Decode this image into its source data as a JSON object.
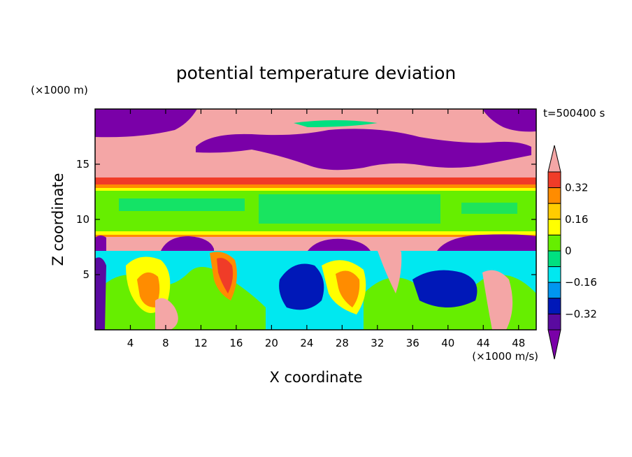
{
  "chart_data": {
    "type": "heatmap",
    "title": "potential temperature deviation",
    "xlabel": "X coordinate",
    "ylabel": "Z coordinate",
    "x_unit_label": "(×1000 m/s)",
    "y_unit_label": "(×1000 m)",
    "time_label": "t=500400 s",
    "xlim": [
      0,
      50
    ],
    "ylim": [
      0,
      20
    ],
    "x_ticks": [
      4,
      8,
      12,
      16,
      20,
      24,
      28,
      32,
      36,
      40,
      44,
      48
    ],
    "y_ticks": [
      5,
      10,
      15
    ],
    "colorbar": {
      "levels": [
        {
          "color": "#f4a6a6",
          "range": "above 0.4"
        },
        {
          "color": "#f03c28",
          "range": "0.32 to 0.4"
        },
        {
          "color": "#ff8c00",
          "range": "0.24 to 0.32"
        },
        {
          "color": "#ffcc00",
          "range": "0.16 to 0.24"
        },
        {
          "color": "#ffff00",
          "range": "0.08 to 0.16"
        },
        {
          "color": "#66ee00",
          "range": "0 to 0.08"
        },
        {
          "color": "#00e080",
          "range": "-0.08 to 0"
        },
        {
          "color": "#00e8f0",
          "range": "-0.16 to -0.08"
        },
        {
          "color": "#0096f0",
          "range": "-0.24 to -0.16"
        },
        {
          "color": "#0018b8",
          "range": "-0.32 to -0.24"
        },
        {
          "color": "#5a0aa0",
          "range": "-0.4 to -0.32"
        },
        {
          "color": "#7a00a8",
          "range": "below -0.4"
        }
      ],
      "tick_labels": [
        "0.32",
        "0.16",
        "0",
        "−0.16",
        "−0.32"
      ]
    },
    "bands": [
      {
        "z_range": [
          17.3,
          20
        ],
        "dominant": "mixed purple/pink"
      },
      {
        "z_range": [
          13.8,
          17.3
        ],
        "dominant": "pink with purple patches"
      },
      {
        "z_range": [
          13.2,
          13.8
        ],
        "dominant": "red/orange/yellow"
      },
      {
        "z_range": [
          8.8,
          13.2
        ],
        "dominant": "green"
      },
      {
        "z_range": [
          8.3,
          8.8
        ],
        "dominant": "yellow/orange"
      },
      {
        "z_range": [
          7.2,
          8.3
        ],
        "dominant": "pink with purple humps"
      },
      {
        "z_range": [
          0,
          7.2
        ],
        "dominant": "turbulent mixed"
      }
    ]
  }
}
